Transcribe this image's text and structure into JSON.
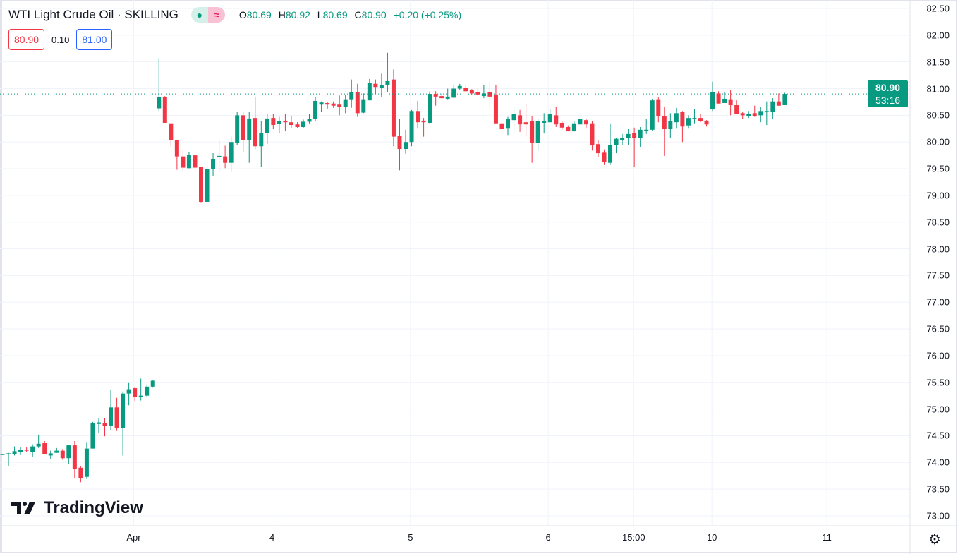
{
  "header": {
    "title": "WTI Light Crude Oil · SKILLING",
    "market_open_icon": "dot-icon",
    "indicator_icon": "wave-icon",
    "wave_glyph": "≈",
    "ohlc": {
      "o_label": "O",
      "o": "80.69",
      "h_label": "H",
      "h": "80.92",
      "l_label": "L",
      "l": "80.69",
      "c_label": "C",
      "c": "80.90",
      "change": "+0.20 (+0.25%)"
    },
    "sell_price": "80.90",
    "spread": "0.10",
    "buy_price": "81.00"
  },
  "last_price": {
    "price": "80.90",
    "countdown": "53:16"
  },
  "logo_text": "TradingView",
  "colors": {
    "up": "#089981",
    "down": "#F23645",
    "grid": "#f0f3fa"
  },
  "chart_data": {
    "type": "candlestick",
    "title": "WTI Light Crude Oil · SKILLING",
    "ylim": [
      73.0,
      82.5
    ],
    "yticks": [
      "82.50",
      "82.00",
      "81.50",
      "81.00",
      "80.50",
      "80.00",
      "79.50",
      "79.00",
      "78.50",
      "78.00",
      "77.50",
      "77.00",
      "76.50",
      "76.00",
      "75.50",
      "75.00",
      "74.50",
      "74.00",
      "73.50",
      "73.00"
    ],
    "xticks": [
      {
        "label": "Apr",
        "bar": 21.8
      },
      {
        "label": "4",
        "bar": 44.8
      },
      {
        "label": "5",
        "bar": 67.8
      },
      {
        "label": "6",
        "bar": 90.7
      },
      {
        "label": "15:00",
        "bar": 104.9
      },
      {
        "label": "10",
        "bar": 117.9
      },
      {
        "label": "11",
        "bar": 137
      }
    ],
    "grid": true,
    "last_price": 80.9,
    "candles_ohlc": [
      [
        74.14,
        74.16,
        74.14,
        74.16
      ],
      [
        74.16,
        74.18,
        73.93,
        74.17
      ],
      [
        74.15,
        74.3,
        74.13,
        74.21
      ],
      [
        74.2,
        74.29,
        74.14,
        74.24
      ],
      [
        74.24,
        74.29,
        74.2,
        74.22
      ],
      [
        74.2,
        74.34,
        74.1,
        74.3
      ],
      [
        74.3,
        74.52,
        74.27,
        74.35
      ],
      [
        74.36,
        74.4,
        74.16,
        74.16
      ],
      [
        74.13,
        74.22,
        74.07,
        74.17
      ],
      [
        74.18,
        74.27,
        74.18,
        74.22
      ],
      [
        74.22,
        74.25,
        74.05,
        74.08
      ],
      [
        74.08,
        74.33,
        73.97,
        74.32
      ],
      [
        74.32,
        74.4,
        73.7,
        73.88
      ],
      [
        73.9,
        73.93,
        73.63,
        73.7
      ],
      [
        73.73,
        74.37,
        73.69,
        74.26
      ],
      [
        74.26,
        74.76,
        74.26,
        74.74
      ],
      [
        74.72,
        74.83,
        74.56,
        74.75
      ],
      [
        74.74,
        74.83,
        74.49,
        74.69
      ],
      [
        74.69,
        75.36,
        74.6,
        75.03
      ],
      [
        75.03,
        75.21,
        74.59,
        74.65
      ],
      [
        74.65,
        75.33,
        74.13,
        75.29
      ],
      [
        75.29,
        75.5,
        75.07,
        75.37
      ],
      [
        75.39,
        75.42,
        75.15,
        75.22
      ],
      [
        75.23,
        75.57,
        75.16,
        75.25
      ],
      [
        75.25,
        75.46,
        75.23,
        75.42
      ],
      [
        75.42,
        75.55,
        75.4,
        75.53
      ],
      [
        80.63,
        81.57,
        80.58,
        80.84
      ],
      [
        80.84,
        80.86,
        80.36,
        80.36
      ],
      [
        80.35,
        80.35,
        79.92,
        80.04
      ],
      [
        80.04,
        80.04,
        79.48,
        79.73
      ],
      [
        79.73,
        79.86,
        79.46,
        79.52
      ],
      [
        79.51,
        79.81,
        79.51,
        79.76
      ],
      [
        79.75,
        79.75,
        79.48,
        79.52
      ],
      [
        79.53,
        79.53,
        78.87,
        78.88
      ],
      [
        78.88,
        79.62,
        78.88,
        79.5
      ],
      [
        79.5,
        79.79,
        79.36,
        79.68
      ],
      [
        79.72,
        80.04,
        79.45,
        79.74
      ],
      [
        79.73,
        79.93,
        79.51,
        79.61
      ],
      [
        79.61,
        80.1,
        79.44,
        80.0
      ],
      [
        79.98,
        80.56,
        79.94,
        80.5
      ],
      [
        80.5,
        80.56,
        79.81,
        80.03
      ],
      [
        80.03,
        80.56,
        79.61,
        80.44
      ],
      [
        80.45,
        80.85,
        79.87,
        79.92
      ],
      [
        79.92,
        80.4,
        79.54,
        80.17
      ],
      [
        80.17,
        80.52,
        79.96,
        80.44
      ],
      [
        80.45,
        80.52,
        80.24,
        80.32
      ],
      [
        80.34,
        80.47,
        80.16,
        80.39
      ],
      [
        80.4,
        80.52,
        80.2,
        80.37
      ],
      [
        80.37,
        80.49,
        80.26,
        80.32
      ],
      [
        80.33,
        80.37,
        80.27,
        80.28
      ],
      [
        80.28,
        80.42,
        80.26,
        80.38
      ],
      [
        80.38,
        80.52,
        80.35,
        80.43
      ],
      [
        80.43,
        80.84,
        80.39,
        80.77
      ],
      [
        80.7,
        80.76,
        80.56,
        80.74
      ],
      [
        80.73,
        80.75,
        80.62,
        80.7
      ],
      [
        80.72,
        80.76,
        80.64,
        80.68
      ],
      [
        80.7,
        80.87,
        80.5,
        80.66
      ],
      [
        80.66,
        80.89,
        80.54,
        80.8
      ],
      [
        80.8,
        81.17,
        80.64,
        80.93
      ],
      [
        80.94,
        81.09,
        80.47,
        80.54
      ],
      [
        80.55,
        80.91,
        80.54,
        80.8
      ],
      [
        80.78,
        81.18,
        80.78,
        81.11
      ],
      [
        81.09,
        81.17,
        80.9,
        81.03
      ],
      [
        81.02,
        81.28,
        80.84,
        81.06
      ],
      [
        81.06,
        81.67,
        80.94,
        81.14
      ],
      [
        81.17,
        81.36,
        79.92,
        80.1
      ],
      [
        80.12,
        80.43,
        79.47,
        79.87
      ],
      [
        79.87,
        80.23,
        79.78,
        80.0
      ],
      [
        80.0,
        80.6,
        79.92,
        80.58
      ],
      [
        80.58,
        80.77,
        80.25,
        80.37
      ],
      [
        80.4,
        80.45,
        80.1,
        80.37
      ],
      [
        80.36,
        80.95,
        80.35,
        80.9
      ],
      [
        80.9,
        80.95,
        80.68,
        80.85
      ],
      [
        80.86,
        80.91,
        80.82,
        80.82
      ],
      [
        80.81,
        81.0,
        80.8,
        80.85
      ],
      [
        80.83,
        81.06,
        80.82,
        81.0
      ],
      [
        81.0,
        81.09,
        80.97,
        81.05
      ],
      [
        81.02,
        81.05,
        80.95,
        80.95
      ],
      [
        80.97,
        80.99,
        80.89,
        80.91
      ],
      [
        80.94,
        81.0,
        80.86,
        80.89
      ],
      [
        80.86,
        81.07,
        80.82,
        80.91
      ],
      [
        80.93,
        81.13,
        80.66,
        80.85
      ],
      [
        80.89,
        81.07,
        80.35,
        80.35
      ],
      [
        80.35,
        80.6,
        80.21,
        80.24
      ],
      [
        80.25,
        80.47,
        80.13,
        80.43
      ],
      [
        80.41,
        80.65,
        80.17,
        80.53
      ],
      [
        80.5,
        80.6,
        80.19,
        80.33
      ],
      [
        80.37,
        80.7,
        80.1,
        80.33
      ],
      [
        80.39,
        80.49,
        79.61,
        79.99
      ],
      [
        79.98,
        80.43,
        79.84,
        80.39
      ],
      [
        80.36,
        80.54,
        80.16,
        80.39
      ],
      [
        80.37,
        80.61,
        80.37,
        80.52
      ],
      [
        80.5,
        80.65,
        80.28,
        80.33
      ],
      [
        80.36,
        80.4,
        80.23,
        80.27
      ],
      [
        80.28,
        80.31,
        80.2,
        80.2
      ],
      [
        80.2,
        80.4,
        80.2,
        80.35
      ],
      [
        80.33,
        80.43,
        80.33,
        80.43
      ],
      [
        80.41,
        80.44,
        80.25,
        80.33
      ],
      [
        80.35,
        80.39,
        79.84,
        79.95
      ],
      [
        79.96,
        80.03,
        79.71,
        79.79
      ],
      [
        79.8,
        79.86,
        79.57,
        79.62
      ],
      [
        79.61,
        80.35,
        79.57,
        79.94
      ],
      [
        79.94,
        80.08,
        79.79,
        80.06
      ],
      [
        80.04,
        80.15,
        79.95,
        80.08
      ],
      [
        80.08,
        80.24,
        79.94,
        80.15
      ],
      [
        80.17,
        80.27,
        79.53,
        80.08
      ],
      [
        80.08,
        80.28,
        79.9,
        80.23
      ],
      [
        80.21,
        80.43,
        80.15,
        80.23
      ],
      [
        80.23,
        80.81,
        80.21,
        80.78
      ],
      [
        80.8,
        80.84,
        80.37,
        80.49
      ],
      [
        80.49,
        80.66,
        79.74,
        80.24
      ],
      [
        80.24,
        80.54,
        80.07,
        80.39
      ],
      [
        80.37,
        80.64,
        80.25,
        80.54
      ],
      [
        80.56,
        80.58,
        80.0,
        80.29
      ],
      [
        80.31,
        80.5,
        80.25,
        80.45
      ],
      [
        80.43,
        80.62,
        80.35,
        80.45
      ],
      [
        80.45,
        80.52,
        80.37,
        80.39
      ],
      [
        80.4,
        80.41,
        80.29,
        80.33
      ],
      [
        80.61,
        81.13,
        80.58,
        80.93
      ],
      [
        80.91,
        80.95,
        80.72,
        80.72
      ],
      [
        80.73,
        80.93,
        80.73,
        80.81
      ],
      [
        80.8,
        80.97,
        80.5,
        80.69
      ],
      [
        80.69,
        80.78,
        80.53,
        80.53
      ],
      [
        80.54,
        80.57,
        80.43,
        80.5
      ],
      [
        80.49,
        80.58,
        80.45,
        80.53
      ],
      [
        80.54,
        80.68,
        80.47,
        80.49
      ],
      [
        80.5,
        80.66,
        80.37,
        80.58
      ],
      [
        80.56,
        80.76,
        80.32,
        80.58
      ],
      [
        80.57,
        80.82,
        80.43,
        80.76
      ],
      [
        80.76,
        80.91,
        80.68,
        80.68
      ],
      [
        80.69,
        80.92,
        80.69,
        80.9
      ]
    ]
  }
}
